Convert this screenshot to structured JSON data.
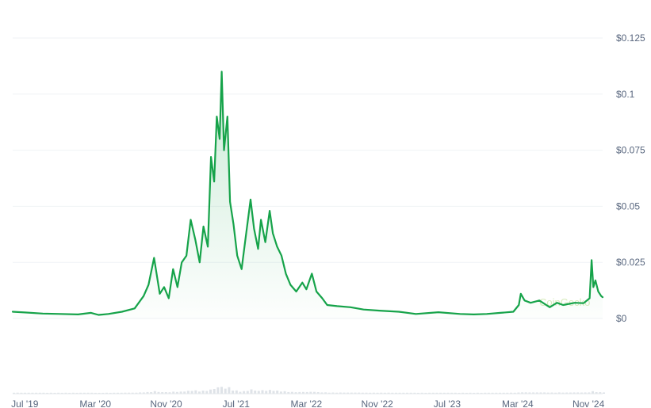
{
  "chart_data": {
    "type": "area",
    "y_tick_labels": [
      "$0",
      "$0.025",
      "$0.05",
      "$0.075",
      "$0.1",
      "$0.125"
    ],
    "y_ticks": [
      0,
      0.025,
      0.05,
      0.075,
      0.1,
      0.125
    ],
    "ylim": [
      0,
      0.125
    ],
    "x_tick_labels": [
      "Jul '19",
      "Mar '20",
      "Nov '20",
      "Jul '21",
      "Mar '22",
      "Nov '22",
      "Jul '23",
      "Mar '24",
      "Nov '24"
    ],
    "x_ticks": [
      "2019-07-01",
      "2020-03-01",
      "2020-11-01",
      "2021-07-01",
      "2022-03-01",
      "2022-11-01",
      "2023-07-01",
      "2024-03-01",
      "2024-11-01"
    ],
    "xlim": [
      "2019-05-20",
      "2024-12-20"
    ],
    "grid": true,
    "legend": "none",
    "watermark": "CoinGecko",
    "line_color": "#16a34a",
    "series": [
      {
        "x": [
          "2019-05-20",
          "2019-07-01",
          "2019-09-01",
          "2019-11-01",
          "2020-01-01",
          "2020-02-15",
          "2020-03-12",
          "2020-04-15",
          "2020-06-01",
          "2020-07-15",
          "2020-08-15",
          "2020-09-01",
          "2020-09-20",
          "2020-10-10",
          "2020-10-25",
          "2020-11-10",
          "2020-11-25",
          "2020-12-10",
          "2020-12-25",
          "2021-01-10",
          "2021-01-25",
          "2021-02-10",
          "2021-02-25",
          "2021-03-10",
          "2021-03-25",
          "2021-04-05",
          "2021-04-16",
          "2021-04-25",
          "2021-05-05",
          "2021-05-12",
          "2021-05-20",
          "2021-06-01",
          "2021-06-10",
          "2021-06-22",
          "2021-07-05",
          "2021-07-20",
          "2021-08-05",
          "2021-08-20",
          "2021-09-01",
          "2021-09-15",
          "2021-09-25",
          "2021-10-10",
          "2021-10-25",
          "2021-11-05",
          "2021-11-20",
          "2021-12-05",
          "2021-12-20",
          "2022-01-05",
          "2022-01-25",
          "2022-02-15",
          "2022-03-01",
          "2022-03-20",
          "2022-04-05",
          "2022-04-25",
          "2022-05-12",
          "2022-06-15",
          "2022-08-01",
          "2022-09-15",
          "2022-11-09",
          "2023-01-15",
          "2023-03-15",
          "2023-06-01",
          "2023-08-15",
          "2023-10-01",
          "2023-11-15",
          "2024-01-01",
          "2024-02-15",
          "2024-03-05",
          "2024-03-12",
          "2024-03-25",
          "2024-04-15",
          "2024-05-15",
          "2024-06-20",
          "2024-07-15",
          "2024-08-05",
          "2024-09-15",
          "2024-10-15",
          "2024-11-05",
          "2024-11-12",
          "2024-11-18",
          "2024-11-25",
          "2024-12-05",
          "2024-12-15",
          "2024-12-20"
        ],
        "y": [
          0.003,
          0.0027,
          0.0022,
          0.002,
          0.0018,
          0.0025,
          0.0016,
          0.002,
          0.003,
          0.0045,
          0.01,
          0.015,
          0.027,
          0.011,
          0.014,
          0.009,
          0.022,
          0.014,
          0.025,
          0.028,
          0.044,
          0.035,
          0.025,
          0.041,
          0.032,
          0.072,
          0.061,
          0.09,
          0.08,
          0.11,
          0.075,
          0.09,
          0.052,
          0.042,
          0.028,
          0.022,
          0.038,
          0.053,
          0.04,
          0.031,
          0.044,
          0.034,
          0.048,
          0.038,
          0.032,
          0.028,
          0.02,
          0.015,
          0.012,
          0.016,
          0.013,
          0.02,
          0.012,
          0.009,
          0.006,
          0.0055,
          0.005,
          0.004,
          0.0035,
          0.003,
          0.002,
          0.0028,
          0.002,
          0.0018,
          0.002,
          0.0025,
          0.003,
          0.006,
          0.011,
          0.008,
          0.007,
          0.008,
          0.005,
          0.007,
          0.006,
          0.007,
          0.0068,
          0.009,
          0.026,
          0.014,
          0.017,
          0.012,
          0.01,
          0.0095
        ]
      }
    ]
  }
}
